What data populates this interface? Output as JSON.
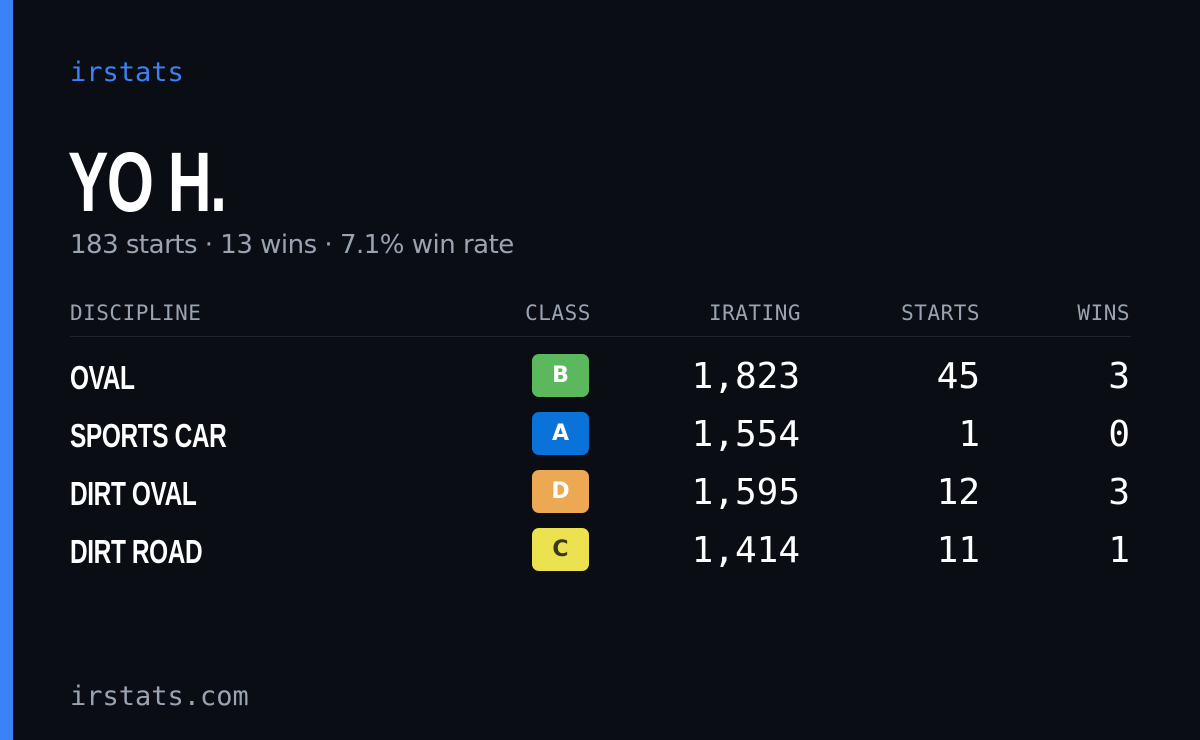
{
  "brand": "irstats",
  "driver_name": "YO H.",
  "summary": "183 starts · 13 wins · 7.1% win rate",
  "table": {
    "headers": {
      "discipline": "DISCIPLINE",
      "class": "CLASS",
      "irating": "IRATING",
      "starts": "STARTS",
      "wins": "WINS"
    },
    "rows": [
      {
        "discipline": "OVAL",
        "class": "B",
        "class_color": "#5cb85c",
        "class_text_color": "#ffffff",
        "irating": "1,823",
        "starts": "45",
        "wins": "3"
      },
      {
        "discipline": "SPORTS CAR",
        "class": "A",
        "class_color": "#0a73d9",
        "class_text_color": "#ffffff",
        "irating": "1,554",
        "starts": "1",
        "wins": "0"
      },
      {
        "discipline": "DIRT OVAL",
        "class": "D",
        "class_color": "#eca853",
        "class_text_color": "#ffffff",
        "irating": "1,595",
        "starts": "12",
        "wins": "3"
      },
      {
        "discipline": "DIRT ROAD",
        "class": "C",
        "class_color": "#ece14e",
        "class_text_color": "#3a3a1a",
        "irating": "1,414",
        "starts": "11",
        "wins": "1"
      }
    ]
  },
  "footer": "irstats.com",
  "colors": {
    "accent": "#3b82f6",
    "background": "#0a0d14",
    "muted_text": "#9aa3b2"
  }
}
